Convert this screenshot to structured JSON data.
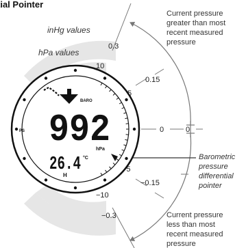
{
  "title": "tial Pointer",
  "legend": {
    "inhg_label": "inHg values",
    "hpa_label": "hPa values"
  },
  "scale": {
    "inhg_top": "0.3",
    "hpa_top": "10",
    "inhg_upper_mid": "0.15",
    "hpa_upper_mid": "5",
    "hpa_zero": "0",
    "inhg_zero": "0",
    "hpa_lower_mid": "−5",
    "inhg_lower_mid": "−0.15",
    "hpa_bottom": "−10",
    "inhg_bottom": "−0.3"
  },
  "annotations": {
    "top": [
      "Current pressure",
      "greater than most",
      "recent measured",
      "pressure"
    ],
    "right": [
      "Barometric",
      "pressure",
      "differential",
      "pointer"
    ],
    "bottom": [
      "Current pressure",
      "less than most",
      "recent measured",
      "pressure"
    ]
  },
  "watch": {
    "mode_label": "BARO",
    "side_label": "PS",
    "pressure_value": "992",
    "pressure_unit": "hPa",
    "temperature_value": "26.4",
    "temperature_unit": "°C",
    "bottom_label": "H"
  },
  "colors": {
    "band": "#e6e6e6",
    "line": "#777777",
    "text": "#222222",
    "watch": "#111111"
  }
}
